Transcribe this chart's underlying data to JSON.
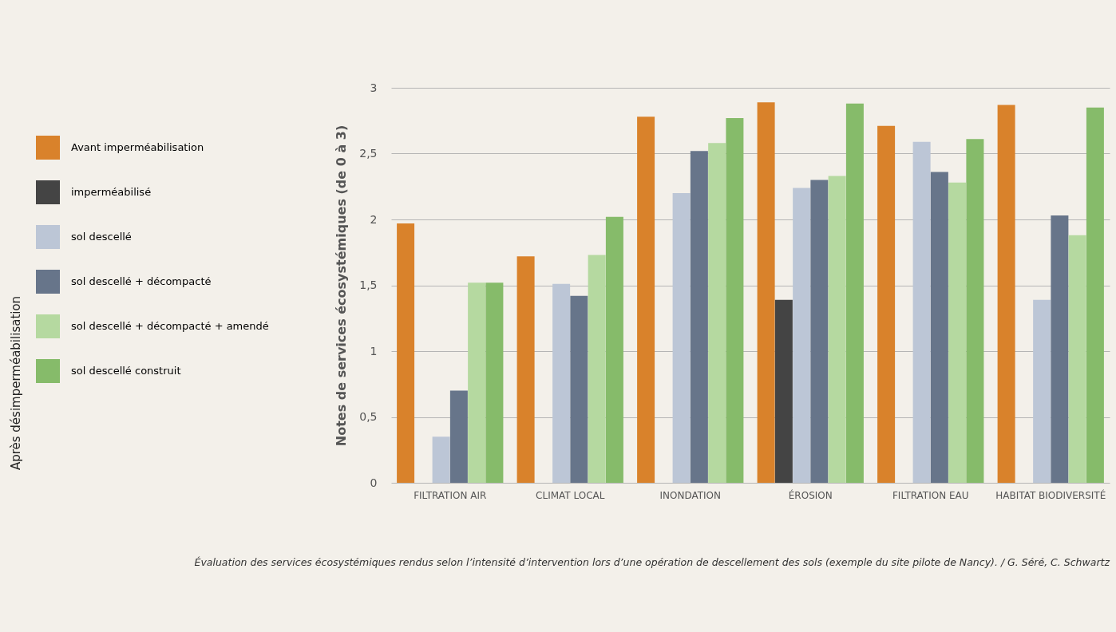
{
  "chart_data": {
    "type": "bar",
    "ylabel": "Notes de services écosystémiques (de 0 à 3)",
    "categories": [
      "FILTRATION AIR",
      "CLIMAT LOCAL",
      "INONDATION",
      "ÉROSION",
      "FILTRATION EAU",
      "HABITAT BIODIVERSITÉ"
    ],
    "series": [
      {
        "name": "Avant imperméabilisation",
        "color": "#d9822b",
        "values": [
          1.97,
          1.72,
          2.78,
          2.89,
          2.71,
          2.87
        ]
      },
      {
        "name": "imperméabilisé",
        "color": "#444444",
        "values": [
          null,
          null,
          null,
          1.39,
          null,
          null
        ]
      },
      {
        "name": "sol descellé",
        "color": "#bcc6d6",
        "values": [
          0.35,
          1.51,
          2.2,
          2.24,
          2.59,
          1.39
        ]
      },
      {
        "name": "sol descellé + décompacté",
        "color": "#67758a",
        "values": [
          0.7,
          1.42,
          2.52,
          2.3,
          2.36,
          2.03
        ]
      },
      {
        "name": "sol descellé + décompacté + amendé",
        "color": "#b5d9a0",
        "values": [
          1.52,
          1.73,
          2.58,
          2.33,
          2.28,
          1.88
        ]
      },
      {
        "name": "sol descellé construit",
        "color": "#86bb6a",
        "values": [
          1.52,
          2.02,
          2.77,
          2.88,
          2.61,
          2.85
        ]
      }
    ],
    "ylim": [
      0,
      3
    ],
    "yticks": [
      0,
      {
        "value": 0.5,
        "label": "0,5"
      },
      1,
      {
        "value": 1.5,
        "label": "1,5"
      },
      2,
      {
        "value": 2.5,
        "label": "2,5"
      },
      3
    ],
    "grid": "y",
    "legend": "left",
    "annotations": [
      "Après désimperméabilisation",
      "Évaluation des services écosystémiques rendus selon l’intensité d’intervention lors d’une opération de descellement des sols (exemple du site pilote de Nancy). / G. Séré, C. Schwartz"
    ]
  }
}
